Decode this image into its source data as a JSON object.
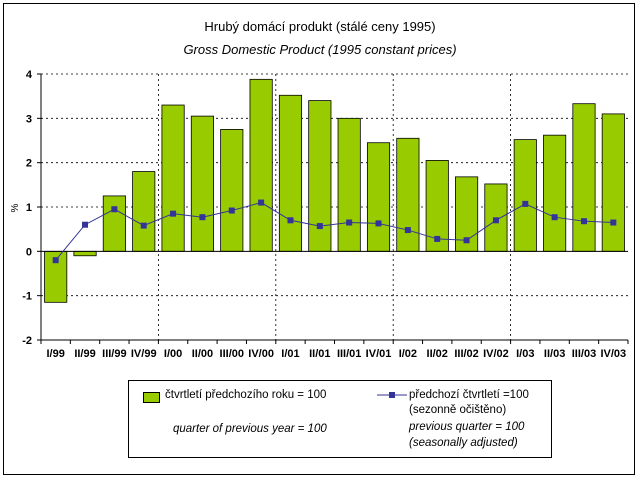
{
  "chart_data": {
    "type": "bar+line",
    "title": "Hrubý domácí produkt (stálé ceny 1995)",
    "subtitle": "Gross Domestic Product (1995 constant prices)",
    "ylabel": "%",
    "ylim": [
      -2,
      4
    ],
    "yticks": [
      "-2",
      "-1",
      "0",
      "1",
      "2",
      "3",
      "4"
    ],
    "categories": [
      "I/99",
      "II/99",
      "III/99",
      "IV/99",
      "I/00",
      "II/00",
      "III/00",
      "IV/00",
      "I/01",
      "II/01",
      "III/01",
      "IV/01",
      "I/02",
      "II/02",
      "III/02",
      "IV/02",
      "I/03",
      "II/03",
      "III/03",
      "IV/03"
    ],
    "series": [
      {
        "name": "čtvrtletí předchozího roku = 100",
        "name_en": "quarter of previous year = 100",
        "type": "bar",
        "color": "#99cc00",
        "values": [
          -1.15,
          -0.1,
          1.25,
          1.8,
          3.3,
          3.05,
          2.75,
          3.88,
          3.52,
          3.4,
          3.0,
          2.45,
          2.55,
          2.05,
          1.68,
          1.52,
          2.52,
          2.62,
          3.33,
          3.1
        ]
      },
      {
        "name": "předchozí čtvrtletí = 100",
        "name_sub": "(sezonně očištěno)",
        "name_en": "previous quarter = 100",
        "name_en_sub": "(seasonally adjusted)",
        "type": "line",
        "color": "#333399",
        "values": [
          -0.2,
          0.6,
          0.95,
          0.58,
          0.85,
          0.77,
          0.92,
          1.1,
          0.7,
          0.57,
          0.65,
          0.63,
          0.48,
          0.28,
          0.25,
          0.7,
          1.07,
          0.77,
          0.68,
          0.65
        ]
      }
    ],
    "gridlines": "vertical dashed separators every 4 quarters, horizontal dashed at ticks",
    "legend_position": "bottom"
  },
  "legend": {
    "bar_label": "čtvrtletí předchozího roku = 100",
    "bar_label_en": "quarter of previous year = 100",
    "line_label": "předchozí čtvrtletí =100",
    "line_label_sub": "(sezonně očištěno)",
    "line_label_en": "previous quarter = 100",
    "line_label_en_sub": "(seasonally adjusted)"
  }
}
